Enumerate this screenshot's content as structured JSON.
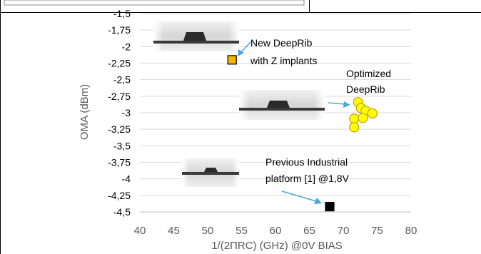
{
  "chart_data": {
    "type": "scatter",
    "xlabel": "1/(2ΠRC) (GHz) @0V BIAS",
    "ylabel": "OMA (dBm)",
    "xlim": [
      40,
      80
    ],
    "ylim": [
      -4.5,
      -1.5
    ],
    "x_ticks": [
      40,
      45,
      50,
      55,
      60,
      65,
      70,
      75,
      80
    ],
    "y_ticks": [
      -1.5,
      -1.75,
      -2,
      -2.25,
      -2.5,
      -2.75,
      -3,
      -3.25,
      -3.5,
      -3.75,
      -4,
      -4.25,
      -4.5
    ],
    "x_tick_labels": [
      "40",
      "45",
      "50",
      "55",
      "60",
      "65",
      "70",
      "75",
      "80"
    ],
    "y_tick_labels": [
      "-1,5",
      "-1,75",
      "-2",
      "-2,25",
      "-2,5",
      "-2,75",
      "-3",
      "-3,25",
      "-3,5",
      "-3,75",
      "-4",
      "-4,25",
      "-4,5"
    ],
    "grid": "horizontal",
    "series": [
      {
        "color": "#ffff00",
        "marker": "circle",
        "points": [
          {
            "x": 72.2,
            "y": -2.84
          },
          {
            "x": 72.6,
            "y": -2.93
          },
          {
            "x": 73.3,
            "y": -2.97
          },
          {
            "x": 74.3,
            "y": -3.01
          },
          {
            "x": 71.6,
            "y": -3.09
          },
          {
            "x": 72.9,
            "y": -3.08
          },
          {
            "x": 71.6,
            "y": -3.22
          }
        ]
      },
      {
        "color": "#f5b400",
        "marker": "square",
        "points": [
          {
            "x": 53.6,
            "y": -2.2
          }
        ]
      },
      {
        "color": "#000000",
        "marker": "square",
        "points": [
          {
            "x": 68.0,
            "y": -4.42
          }
        ]
      }
    ],
    "annotations": [
      {
        "lines": [
          "New DeepRib",
          "with Z implants"
        ],
        "arrow_color": "#4aa8d8"
      },
      {
        "lines": [
          "Optimized",
          "DeepRib"
        ],
        "arrow_color": "#4aa8d8"
      },
      {
        "lines": [
          "Previous Industrial",
          "platform [1] @1,8V"
        ],
        "arrow_color": "#4aa8d8"
      }
    ],
    "images": [
      "waveguide-cross-section",
      "waveguide-cross-section",
      "waveguide-cross-section"
    ]
  }
}
